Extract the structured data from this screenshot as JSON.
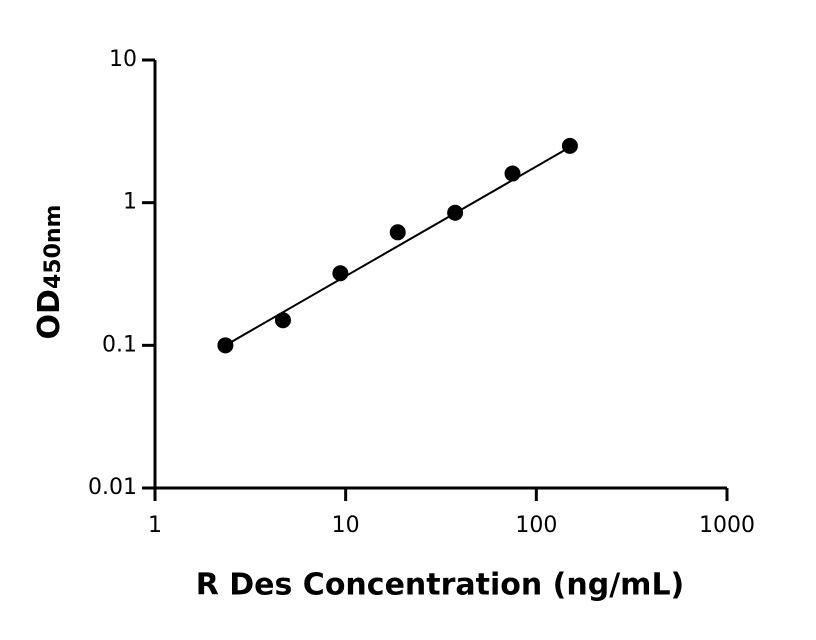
{
  "chart_data": {
    "type": "scatter",
    "xlabel": "R Des Concentration (ng/mL)",
    "ylabel": "OD",
    "ylabel_sub": "450nm",
    "xscale": "log",
    "yscale": "log",
    "xlim": [
      1,
      1000
    ],
    "ylim": [
      0.01,
      10
    ],
    "xticks": [
      1,
      10,
      100,
      1000
    ],
    "yticks": [
      0.01,
      0.1,
      1,
      10
    ],
    "series": [
      {
        "color": "#000000",
        "x": [
          2.34,
          4.69,
          9.38,
          18.75,
          37.5,
          75,
          150
        ],
        "values": [
          0.1,
          0.15,
          0.32,
          0.62,
          0.85,
          1.6,
          2.5
        ]
      }
    ],
    "fit": {
      "color": "#000000",
      "x": [
        2.34,
        150
      ],
      "values": [
        0.1,
        2.45
      ]
    }
  }
}
